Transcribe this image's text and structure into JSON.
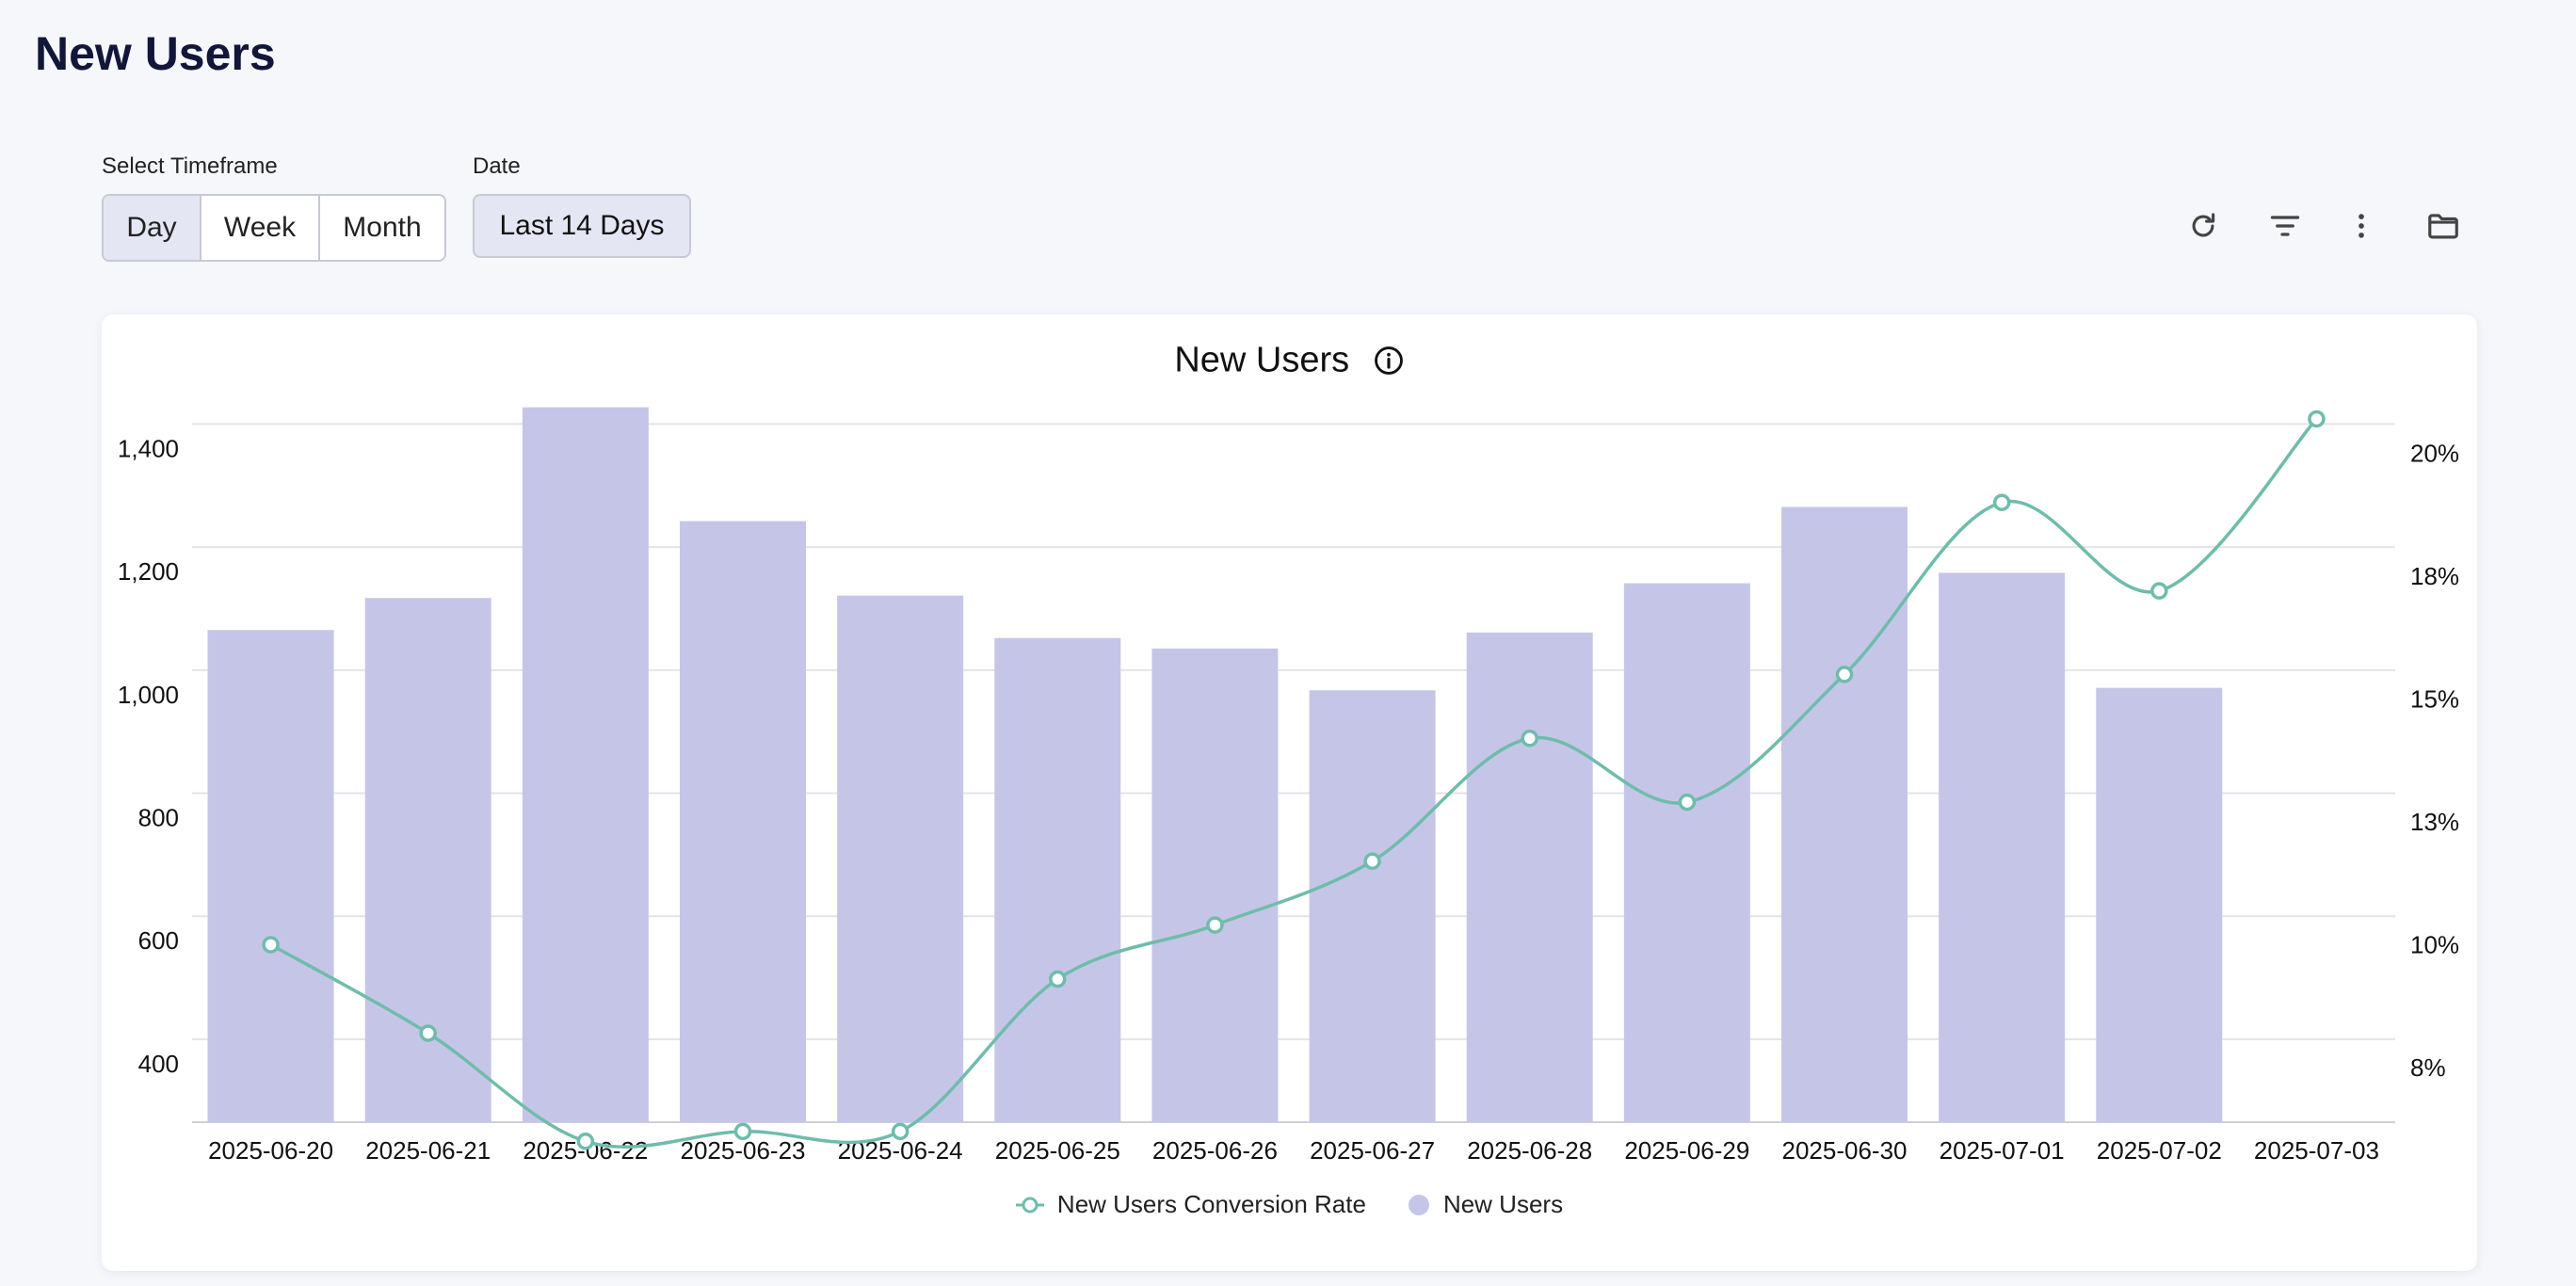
{
  "page": {
    "title": "New Users"
  },
  "controls": {
    "timeframe_label": "Select Timeframe",
    "timeframe_options": [
      "Day",
      "Week",
      "Month"
    ],
    "timeframe_selected": "Day",
    "date_label": "Date",
    "date_value": "Last 14 Days"
  },
  "toolbar": {
    "icons": [
      "refresh-icon",
      "filter-icon",
      "more-vertical-icon",
      "folder-icon"
    ]
  },
  "colors": {
    "bar": "#c5c6e7",
    "line": "#6fbcab",
    "grid": "#e3e4e8",
    "text": "#111111"
  },
  "chart_data": {
    "type": "bar",
    "title": "New Users",
    "categories": [
      "2025-06-20",
      "2025-06-21",
      "2025-06-22",
      "2025-06-23",
      "2025-06-24",
      "2025-06-25",
      "2025-06-26",
      "2025-06-27",
      "2025-06-28",
      "2025-06-29",
      "2025-06-30",
      "2025-07-01",
      "2025-07-02",
      "2025-07-03"
    ],
    "series": [
      {
        "name": "New Users",
        "type": "bar",
        "axis": "left",
        "values": [
          1105,
          1157,
          1467,
          1282,
          1161,
          1092,
          1075,
          1007,
          1101,
          1181,
          1305,
          1198,
          1011,
          null
        ]
      },
      {
        "name": "New Users Conversion Rate",
        "type": "line",
        "axis": "right",
        "unit": "%",
        "values": [
          10.0,
          8.2,
          6.0,
          6.2,
          6.2,
          9.3,
          10.4,
          11.7,
          14.2,
          12.9,
          15.5,
          19.0,
          17.2,
          20.7
        ]
      }
    ],
    "y_left": {
      "ticks": [
        "400",
        "600",
        "800",
        "1,000",
        "1,200",
        "1,400"
      ],
      "tick_values": [
        400,
        600,
        800,
        1000,
        1200,
        1400
      ]
    },
    "y_right": {
      "ticks": [
        "8%",
        "10%",
        "13%",
        "15%",
        "18%",
        "20%"
      ],
      "tick_values": [
        7.5,
        10,
        12.5,
        15,
        17.5,
        20
      ]
    },
    "legend": [
      "New Users Conversion Rate",
      "New Users"
    ]
  }
}
